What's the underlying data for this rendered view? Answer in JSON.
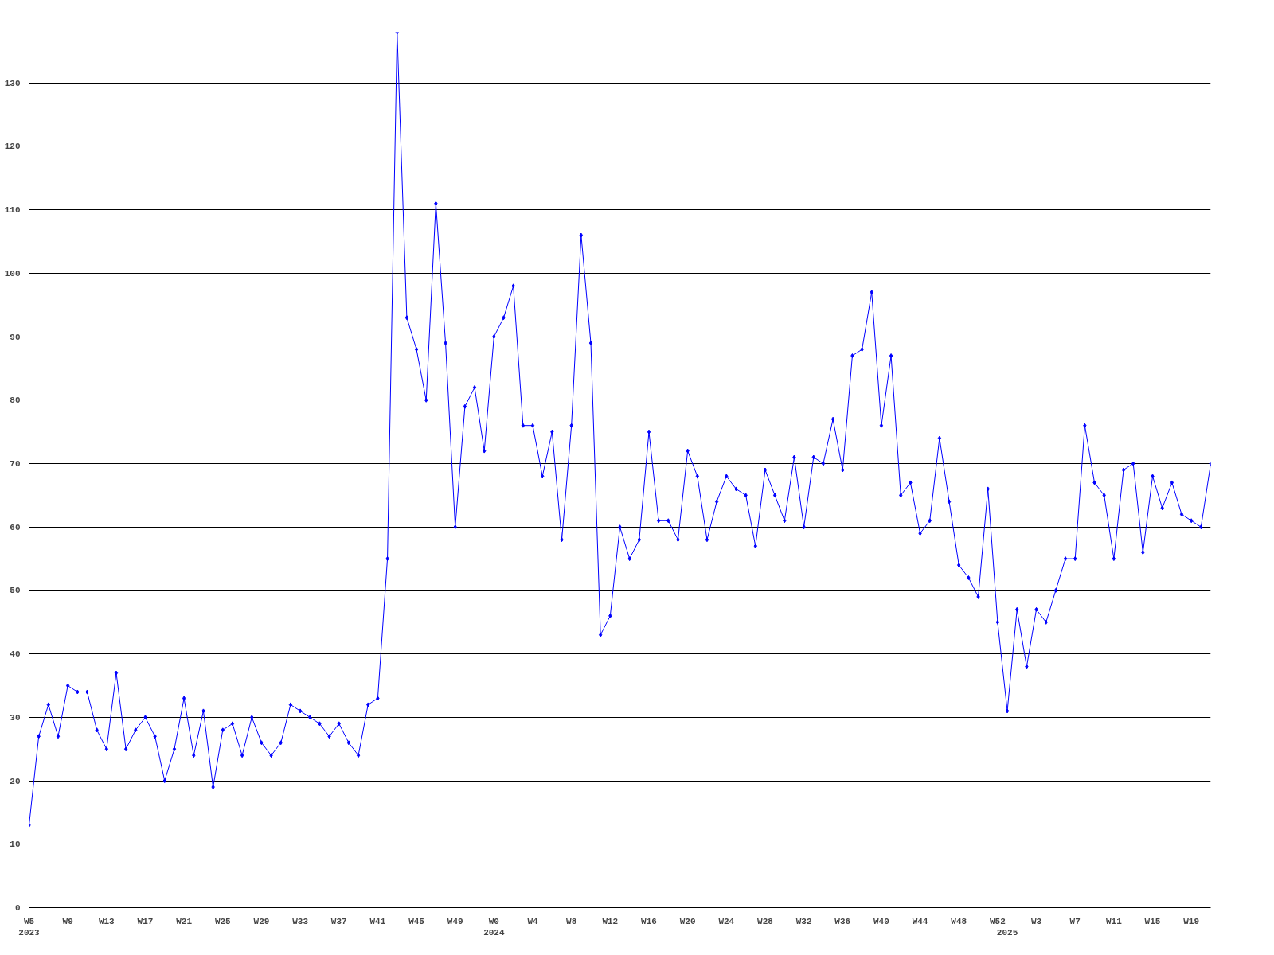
{
  "chart_data": {
    "type": "line",
    "categories": [
      "W5\n2023",
      null,
      null,
      null,
      "W9",
      null,
      null,
      null,
      "W13",
      null,
      null,
      null,
      "W17",
      null,
      null,
      null,
      "W21",
      null,
      null,
      null,
      "W25",
      null,
      null,
      null,
      "W29",
      null,
      null,
      null,
      "W33",
      null,
      null,
      null,
      "W37",
      null,
      null,
      null,
      "W41",
      null,
      null,
      null,
      "W45",
      null,
      null,
      null,
      "W49",
      null,
      null,
      null,
      "W0\n2024",
      null,
      null,
      null,
      "W4",
      null,
      null,
      null,
      "W8",
      null,
      null,
      null,
      "W12",
      null,
      null,
      null,
      "W16",
      null,
      null,
      null,
      "W20",
      null,
      null,
      null,
      "W24",
      null,
      null,
      null,
      "W28",
      null,
      null,
      null,
      "W32",
      null,
      null,
      null,
      "W36",
      null,
      null,
      null,
      "W40",
      null,
      null,
      null,
      "W44",
      null,
      null,
      null,
      "W48",
      null,
      null,
      null,
      "W52",
      "\n2025",
      null,
      null,
      "W3",
      null,
      null,
      null,
      "W7",
      null,
      null,
      null,
      "W11",
      null,
      null,
      null,
      "W15",
      null,
      null,
      null,
      "W19",
      null,
      null
    ],
    "series": [
      {
        "color": "#0000ff",
        "values": [
          13,
          27,
          32,
          27,
          35,
          34,
          34,
          28,
          25,
          37,
          25,
          28,
          30,
          27,
          20,
          25,
          33,
          24,
          31,
          19,
          28,
          29,
          24,
          30,
          26,
          24,
          26,
          32,
          31,
          30,
          29,
          27,
          29,
          26,
          24,
          32,
          33,
          55,
          138,
          93,
          88,
          80,
          111,
          89,
          60,
          79,
          82,
          72,
          90,
          93,
          98,
          76,
          76,
          68,
          75,
          58,
          76,
          106,
          89,
          43,
          46,
          60,
          55,
          58,
          75,
          61,
          61,
          58,
          72,
          68,
          58,
          64,
          68,
          66,
          65,
          57,
          69,
          65,
          61,
          71,
          60,
          71,
          70,
          77,
          69,
          87,
          88,
          97,
          76,
          87,
          65,
          67,
          59,
          61,
          74,
          64,
          54,
          52,
          49,
          66,
          45,
          31,
          47,
          38,
          47,
          45,
          50,
          55,
          55,
          76,
          67,
          65,
          55,
          69,
          70,
          56,
          68,
          63,
          67,
          62,
          61,
          60,
          70
        ]
      }
    ],
    "ylim": [
      0,
      138
    ],
    "yticks": [
      0,
      10,
      20,
      30,
      40,
      50,
      60,
      70,
      80,
      90,
      100,
      110,
      120,
      130
    ],
    "grid": "y",
    "marker": "diamond",
    "line_style": "solid"
  }
}
